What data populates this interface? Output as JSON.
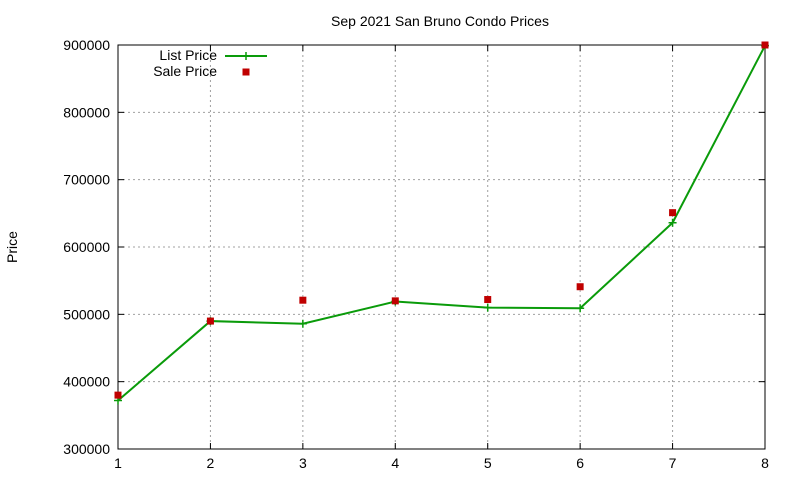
{
  "chart_data": {
    "type": "line",
    "title": "Sep 2021 San Bruno Condo Prices",
    "xlabel": "",
    "ylabel": "Price",
    "x": [
      1,
      2,
      3,
      4,
      5,
      6,
      7,
      8
    ],
    "xlim": [
      1,
      8
    ],
    "ylim": [
      300000,
      900000
    ],
    "xticks": [
      1,
      2,
      3,
      4,
      5,
      6,
      7,
      8
    ],
    "yticks": [
      300000,
      400000,
      500000,
      600000,
      700000,
      800000,
      900000
    ],
    "grid": true,
    "legend_position": "top-left",
    "series": [
      {
        "name": "List Price",
        "style": "line+cross",
        "color": "#0a9b0a",
        "values": [
          372000,
          490000,
          486000,
          519000,
          510000,
          509000,
          636000,
          899000
        ]
      },
      {
        "name": "Sale Price",
        "style": "square-points",
        "color": "#c00000",
        "values": [
          380000,
          490000,
          521000,
          520000,
          522000,
          541000,
          651000,
          900000
        ]
      }
    ]
  }
}
